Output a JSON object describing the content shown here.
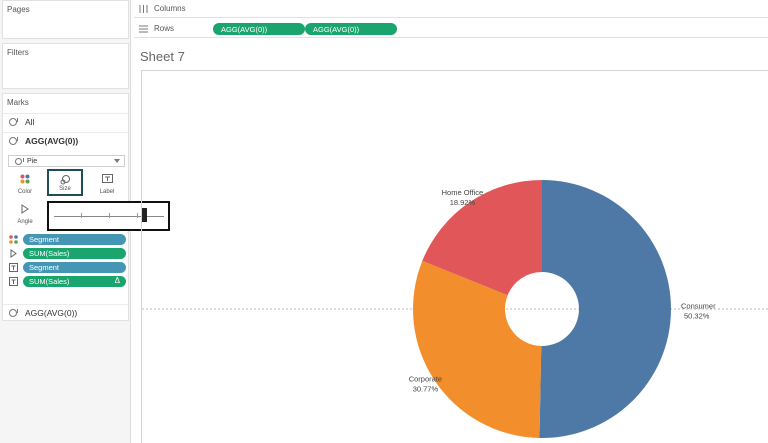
{
  "left_panel": {
    "pages_title": "Pages",
    "filters_title": "Filters",
    "marks_title": "Marks",
    "all_label": "All",
    "measure_title": "AGG(AVG(0))",
    "mark_type": "Pie",
    "buttons": {
      "color": "Color",
      "size": "Size",
      "label": "Label",
      "angle": "Angle"
    },
    "fields": [
      {
        "name": "Segment",
        "kind": "dimension",
        "icon": "color-dots-icon"
      },
      {
        "name": "SUM(Sales)",
        "kind": "measure",
        "icon": "angle-icon"
      },
      {
        "name": "Segment",
        "kind": "dimension",
        "icon": "text-label-icon"
      },
      {
        "name": "SUM(Sales)",
        "kind": "measure",
        "icon": "text-label-icon",
        "badge": "Δ"
      }
    ],
    "second_measure": "AGG(AVG(0))",
    "size_slider_value": 0.82
  },
  "shelves": {
    "columns_label": "Columns",
    "rows_label": "Rows",
    "rows_pills": [
      "AGG(AVG(0))",
      "AGG(AVG(0))"
    ]
  },
  "sheet": {
    "title": "Sheet 7"
  },
  "colors": {
    "consumer": "#4e79a7",
    "corporate": "#f28e2b",
    "home_office": "#e15759",
    "dimension_pill": "#4596b4",
    "measure_pill": "#1aa56e"
  },
  "chart_data": {
    "type": "pie",
    "donut": true,
    "labels": [
      "Consumer",
      "Corporate",
      "Home Office"
    ],
    "values": [
      50.32,
      30.77,
      18.92
    ],
    "value_labels": [
      "50.32%",
      "30.77%",
      "18.92%"
    ],
    "colors": [
      "#4e79a7",
      "#f28e2b",
      "#e15759"
    ],
    "title": ""
  }
}
